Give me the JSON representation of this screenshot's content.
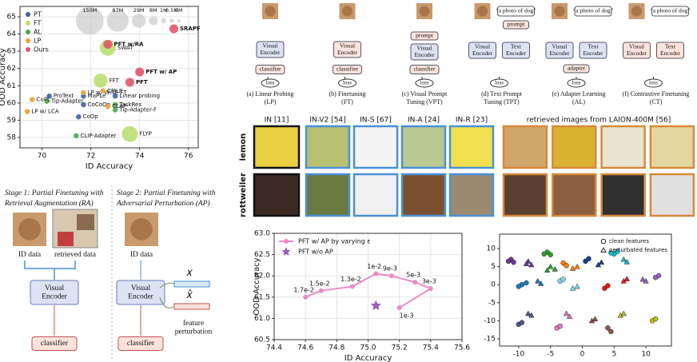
{
  "chart_data": [
    {
      "type": "bubble",
      "xlabel": "ID Accuracy",
      "ylabel": "OOD Accuracy",
      "xlim": [
        69.1,
        76.4
      ],
      "ylim": [
        57.4,
        65.6
      ],
      "xticks": [
        70,
        72,
        74,
        76
      ],
      "yticks": [
        58,
        59,
        60,
        61,
        62,
        63,
        64,
        65
      ],
      "grid": true,
      "legend": "upper left",
      "size_legend": [
        {
          "value": 150,
          "label": "150M"
        },
        {
          "value": 87,
          "label": "87M"
        },
        {
          "value": 29,
          "label": "29M"
        },
        {
          "value": 8,
          "label": "8M"
        },
        {
          "value": 1,
          "label": "1M"
        },
        {
          "value": 0.5,
          "label": "0.5M"
        },
        {
          "value": 0,
          "label": "0M"
        }
      ],
      "series": [
        {
          "name": "PT",
          "color": "#3d5fae",
          "labels": [
            "MaPLe",
            "ProText",
            "CoCoOp",
            "CoOp",
            "Linear probing"
          ],
          "x": [
            71.7,
            70.3,
            71.7,
            71.5,
            73.0
          ],
          "y": [
            60.4,
            60.4,
            59.9,
            59.2,
            60.4
          ],
          "sizes": [
            1,
            1,
            1,
            1,
            1
          ]
        },
        {
          "name": "FT",
          "color": "#b9df72",
          "labels": [
            "FFT",
            "SWAT",
            "FLYP"
          ],
          "x": [
            72.4,
            72.7,
            73.6
          ],
          "y": [
            61.3,
            63.2,
            58.2
          ],
          "sizes": [
            29,
            40,
            40
          ]
        },
        {
          "name": "AL",
          "color": "#4aa84a",
          "labels": [
            "Tip-Adapter",
            "TaskRes",
            "Tip-Adapter-F",
            "CLIP-Adapter"
          ],
          "x": [
            70.2,
            73.0,
            73.0,
            71.4
          ],
          "y": [
            60.1,
            59.9,
            59.6,
            58.1
          ],
          "sizes": [
            1,
            1,
            1,
            1
          ]
        },
        {
          "name": "LP",
          "color": "#f0a035",
          "labels": [
            "CuPL",
            "LP w/ LCA",
            "LP w/ WiSE-FT",
            "CLAP",
            "CMLP"
          ],
          "x": [
            69.6,
            69.4,
            71.7,
            72.7,
            72.5
          ],
          "y": [
            60.2,
            59.5,
            60.6,
            59.8,
            60.7
          ],
          "sizes": [
            1,
            1,
            1,
            1,
            1
          ]
        },
        {
          "name": "Ours",
          "color": "#e0556a",
          "labels": [
            "SRAPF",
            "PFT w/RA",
            "PFT w/ AP",
            "PFT"
          ],
          "x": [
            75.4,
            72.7,
            74.0,
            73.6
          ],
          "y": [
            64.3,
            63.4,
            61.8,
            61.2
          ],
          "sizes": [
            8,
            8,
            8,
            8
          ]
        }
      ]
    },
    {
      "type": "line",
      "xlabel": "ID Accuracy",
      "ylabel": "OOD Accuracy",
      "xlim": [
        74.4,
        75.6
      ],
      "ylim": [
        60.5,
        63.0
      ],
      "xticks": [
        74.4,
        74.6,
        74.8,
        {
          "value": 75,
          "label": "75.0"
        },
        75.2,
        75.4,
        75.6
      ],
      "yticks": [
        60.5,
        {
          "value": 61,
          "label": "61.0"
        },
        61.5,
        {
          "value": 62,
          "label": "62.0"
        },
        62.5,
        {
          "value": 63,
          "label": "63.0"
        }
      ],
      "grid": true,
      "legend": "upper left",
      "series": [
        {
          "name": "PFT w/ AP by varying ε",
          "color": "#ea8ac6",
          "marker": "circle",
          "x": [
            74.6,
            74.7,
            74.9,
            75.05,
            75.15,
            75.3,
            75.4,
            75.2
          ],
          "y": [
            61.5,
            61.65,
            61.75,
            62.05,
            62.0,
            61.85,
            61.7,
            61.25
          ],
          "point_labels": [
            "1.7e-2",
            "1.5e-2",
            "1.3e-2",
            "1e-2",
            "9e-3",
            "5e-3",
            "3e-3",
            "1e-3"
          ]
        },
        {
          "name": "PFT w/o AP",
          "color": "#9a5cc0",
          "marker": "star",
          "x": [
            75.05
          ],
          "y": [
            61.3
          ]
        }
      ]
    },
    {
      "type": "scatter",
      "xlim": [
        -13,
        14
      ],
      "ylim": [
        -17,
        14
      ],
      "xticks": [
        -10,
        -5,
        0,
        5,
        10
      ],
      "yticks": [
        10,
        5,
        0,
        -5,
        -10,
        -15
      ],
      "grid": false,
      "legend": "upper right",
      "series": [
        {
          "name": "clean features",
          "marker": "circle",
          "x": [
            -11.2,
            -10.8,
            -11.6,
            -5.5,
            -5,
            -6,
            -3,
            -2.5,
            0.5,
            1,
            5,
            5.5,
            4.5,
            -9.5,
            -8.8,
            -10,
            -3.5,
            -3,
            3.5,
            4,
            11.5,
            12,
            -10,
            -9.5,
            -4,
            -3.5,
            4,
            4.5,
            11,
            11.5
          ],
          "y": [
            7,
            6.2,
            6.5,
            9,
            8.3,
            8.5,
            6,
            5.3,
            6.5,
            7.2,
            8.5,
            9.2,
            8.8,
            0,
            0.5,
            -0.5,
            1,
            1.5,
            -1,
            -0.3,
            2,
            2.5,
            -11,
            -10.5,
            -12,
            -11.5,
            -12,
            -13,
            -10,
            -9.5
          ],
          "colors": [
            "#6a3d9a",
            "#6a3d9a",
            "#6a3d9a",
            "#33a02c",
            "#33a02c",
            "#33a02c",
            "#ff7f00",
            "#ff7f00",
            "#1f3a93",
            "#1f3a93",
            "#17becf",
            "#17becf",
            "#17becf",
            "#1f78b4",
            "#1f78b4",
            "#1f78b4",
            "#7fd6e8",
            "#7fd6e8",
            "#e31a1c",
            "#e31a1c",
            "#9467bd",
            "#9467bd",
            "#4a5a8a",
            "#4a5a8a",
            "#e377c2",
            "#e377c2",
            "#8c564b",
            "#8c564b",
            "#bcbd22",
            "#bcbd22"
          ]
        },
        {
          "name": "perturbated features",
          "marker": "triangle",
          "x": [
            -8.5,
            -8,
            -8.8,
            -5,
            -4.3,
            -5.5,
            -1.5,
            -0.8,
            2.5,
            3,
            6.5,
            7,
            -7,
            -6.5,
            -1.5,
            -0.8,
            6.5,
            7,
            9.5,
            10,
            -8.5,
            -8,
            -2.5,
            -2,
            1.5,
            2,
            6,
            6.5
          ],
          "y": [
            6.5,
            5.5,
            5.8,
            5,
            4.3,
            4,
            4.5,
            5,
            5.5,
            6.2,
            7,
            6.3,
            1,
            0.3,
            -1,
            -0.5,
            1,
            1.6,
            1.5,
            1,
            -8,
            -8.5,
            -8,
            -8.8,
            -10,
            -9.5,
            -8.5,
            -8
          ],
          "colors": [
            "#6a3d9a",
            "#6a3d9a",
            "#6a3d9a",
            "#33a02c",
            "#33a02c",
            "#33a02c",
            "#ff7f00",
            "#ff7f00",
            "#1f3a93",
            "#1f3a93",
            "#17becf",
            "#17becf",
            "#1f78b4",
            "#1f78b4",
            "#7fd6e8",
            "#7fd6e8",
            "#e31a1c",
            "#e31a1c",
            "#9467bd",
            "#9467bd",
            "#4a5a8a",
            "#4a5a8a",
            "#e377c2",
            "#e377c2",
            "#8c564b",
            "#8c564b",
            "#bcbd22",
            "#bcbd22"
          ]
        }
      ]
    }
  ],
  "panels": [
    {
      "caption": [
        "(a) Linear Probing",
        "(LP)"
      ],
      "boxes": [
        [
          "Visual",
          "Encoder"
        ],
        [
          "classifier"
        ],
        [
          "loss"
        ]
      ]
    },
    {
      "caption": [
        "(b) Finetuning",
        "(FT)"
      ],
      "boxes": [
        [
          "Visual",
          "Encoder"
        ],
        [
          "classifier"
        ],
        [
          "loss"
        ]
      ]
    },
    {
      "caption": [
        "(c) Visual Prompt",
        "Tuning (VPT)"
      ],
      "boxes": [
        [
          "prompt"
        ],
        [
          "Visual",
          "Encoder"
        ],
        [
          "classifier"
        ],
        [
          "loss"
        ]
      ]
    },
    {
      "caption": [
        "(d) Text Prompt",
        "Tuning (TPT)"
      ],
      "boxes": [
        [
          "“a photo of dog”"
        ],
        [
          "prompt"
        ],
        [
          "Visual",
          "Encoder"
        ],
        [
          "Text",
          "Encoder"
        ],
        [
          "loss"
        ]
      ]
    },
    {
      "caption": [
        "(e) Adapter Learning",
        "(AL)"
      ],
      "boxes": [
        [
          "“a photo of dog”"
        ],
        [
          "Visual",
          "Encoder"
        ],
        [
          "Text",
          "Encoder"
        ],
        [
          "adapter"
        ],
        [
          "loss"
        ]
      ]
    },
    {
      "caption": [
        "(f) Contrastive Finetuning",
        "(CT)"
      ],
      "boxes": [
        [
          "“a photo of dog”"
        ],
        [
          "Visual",
          "Encoder"
        ],
        [
          "Text",
          "Encoder"
        ],
        [
          "loss"
        ]
      ]
    }
  ],
  "image_grid": {
    "headers": [
      "IN [11]",
      "IN-V2 [54]",
      "IN-S [67]",
      "IN-A [24]",
      "IN-R [23]",
      "retrieved images from LAION-400M [56]"
    ],
    "rows": [
      "lemon",
      "rottweiler"
    ]
  },
  "stages": [
    {
      "title": [
        "Stage 1: Partial Finetuning with",
        "Retrieval Augmentation (RA)"
      ],
      "inputs": [
        "ID data",
        "retrieved data"
      ],
      "encoder": [
        "Visual",
        "Encoder"
      ],
      "classifier": "classifier"
    },
    {
      "title": [
        "Stage 2: Partial Finetuning with",
        "Adversarial Perturbation (AP)"
      ],
      "inputs": [
        "ID data"
      ],
      "encoder": [
        "Visual",
        "Encoder"
      ],
      "classifier": "classifier",
      "feature": "𝑥",
      "perturbed": "𝑥̂",
      "perturbation": [
        "feature",
        "perturbation"
      ]
    }
  ]
}
